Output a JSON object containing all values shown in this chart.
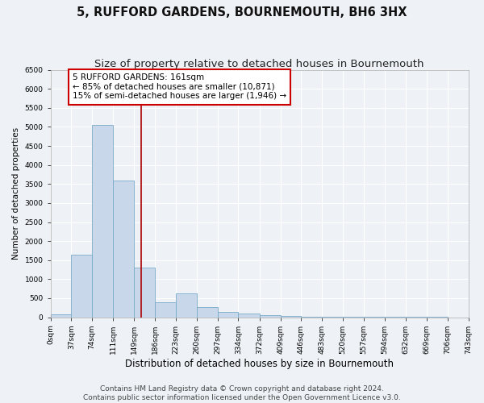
{
  "title": "5, RUFFORD GARDENS, BOURNEMOUTH, BH6 3HX",
  "subtitle": "Size of property relative to detached houses in Bournemouth",
  "xlabel": "Distribution of detached houses by size in Bournemouth",
  "ylabel": "Number of detached properties",
  "bar_edges": [
    0,
    37,
    74,
    111,
    149,
    186,
    223,
    260,
    297,
    334,
    372,
    409,
    446,
    483,
    520,
    557,
    594,
    632,
    669,
    706,
    743
  ],
  "bar_heights": [
    75,
    1650,
    5050,
    3600,
    1300,
    400,
    620,
    270,
    130,
    100,
    55,
    40,
    20,
    12,
    6,
    4,
    2,
    1,
    1,
    0
  ],
  "bar_color": "#c8d8ea",
  "bar_edge_color": "#7aaac8",
  "vline_x": 161,
  "vline_color": "#aa0000",
  "annotation_text": "5 RUFFORD GARDENS: 161sqm\n← 85% of detached houses are smaller (10,871)\n15% of semi-detached houses are larger (1,946) →",
  "annotation_box_color": "#ffffff",
  "annotation_box_edge_color": "#cc0000",
  "ylim": [
    0,
    6500
  ],
  "yticks": [
    0,
    500,
    1000,
    1500,
    2000,
    2500,
    3000,
    3500,
    4000,
    4500,
    5000,
    5500,
    6000,
    6500
  ],
  "tick_labels": [
    "0sqm",
    "37sqm",
    "74sqm",
    "111sqm",
    "149sqm",
    "186sqm",
    "223sqm",
    "260sqm",
    "297sqm",
    "334sqm",
    "372sqm",
    "409sqm",
    "446sqm",
    "483sqm",
    "520sqm",
    "557sqm",
    "594sqm",
    "632sqm",
    "669sqm",
    "706sqm",
    "743sqm"
  ],
  "footer_line1": "Contains HM Land Registry data © Crown copyright and database right 2024.",
  "footer_line2": "Contains public sector information licensed under the Open Government Licence v3.0.",
  "bg_color": "#eef2f6",
  "plot_bg_color": "#eef2f6",
  "grid_color": "#ffffff",
  "title_fontsize": 10.5,
  "subtitle_fontsize": 9.5,
  "xlabel_fontsize": 8.5,
  "ylabel_fontsize": 7.5,
  "tick_fontsize": 6.5,
  "footer_fontsize": 6.5,
  "annot_fontsize": 7.5
}
